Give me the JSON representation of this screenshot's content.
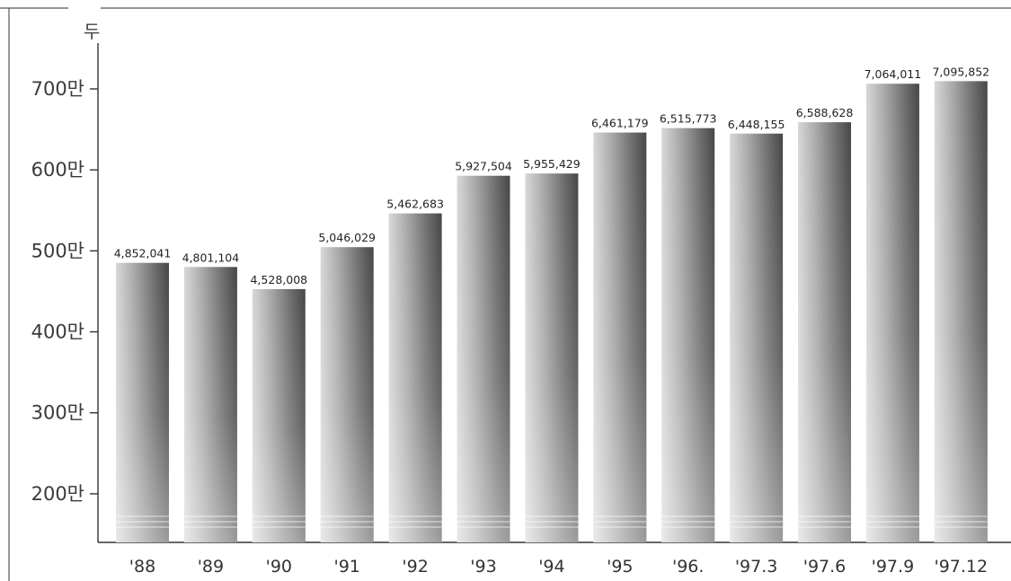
{
  "chart_data": {
    "type": "bar",
    "ylabel": "두",
    "categories": [
      "'88",
      "'89",
      "'90",
      "'91",
      "'92",
      "'93",
      "'94",
      "'95",
      "'96.",
      "'97.3",
      "'97.6",
      "'97.9",
      "'97.12"
    ],
    "values": [
      4852041,
      4801104,
      4528008,
      5046029,
      5462683,
      5927504,
      5955429,
      6461179,
      6515773,
      6448155,
      6588628,
      7064011,
      7095852
    ],
    "value_labels": [
      "4,852,041",
      "4,801,104",
      "4,528,008",
      "5,046,029",
      "5,462,683",
      "5,927,504",
      "5,955,429",
      "6,461,179",
      "6,515,773",
      "6,448,155",
      "6,588,628",
      "7,064,011",
      "7,095,852"
    ],
    "yticks": [
      2000000,
      3000000,
      4000000,
      5000000,
      6000000,
      7000000
    ],
    "ytick_labels": [
      "200만",
      "300만",
      "400만",
      "500만",
      "600만",
      "700만"
    ],
    "ylim": [
      1400000,
      7550000
    ],
    "grid": false,
    "bar_color_dark": "#4a4a4a",
    "bar_color_light": "#d6d6d6"
  }
}
